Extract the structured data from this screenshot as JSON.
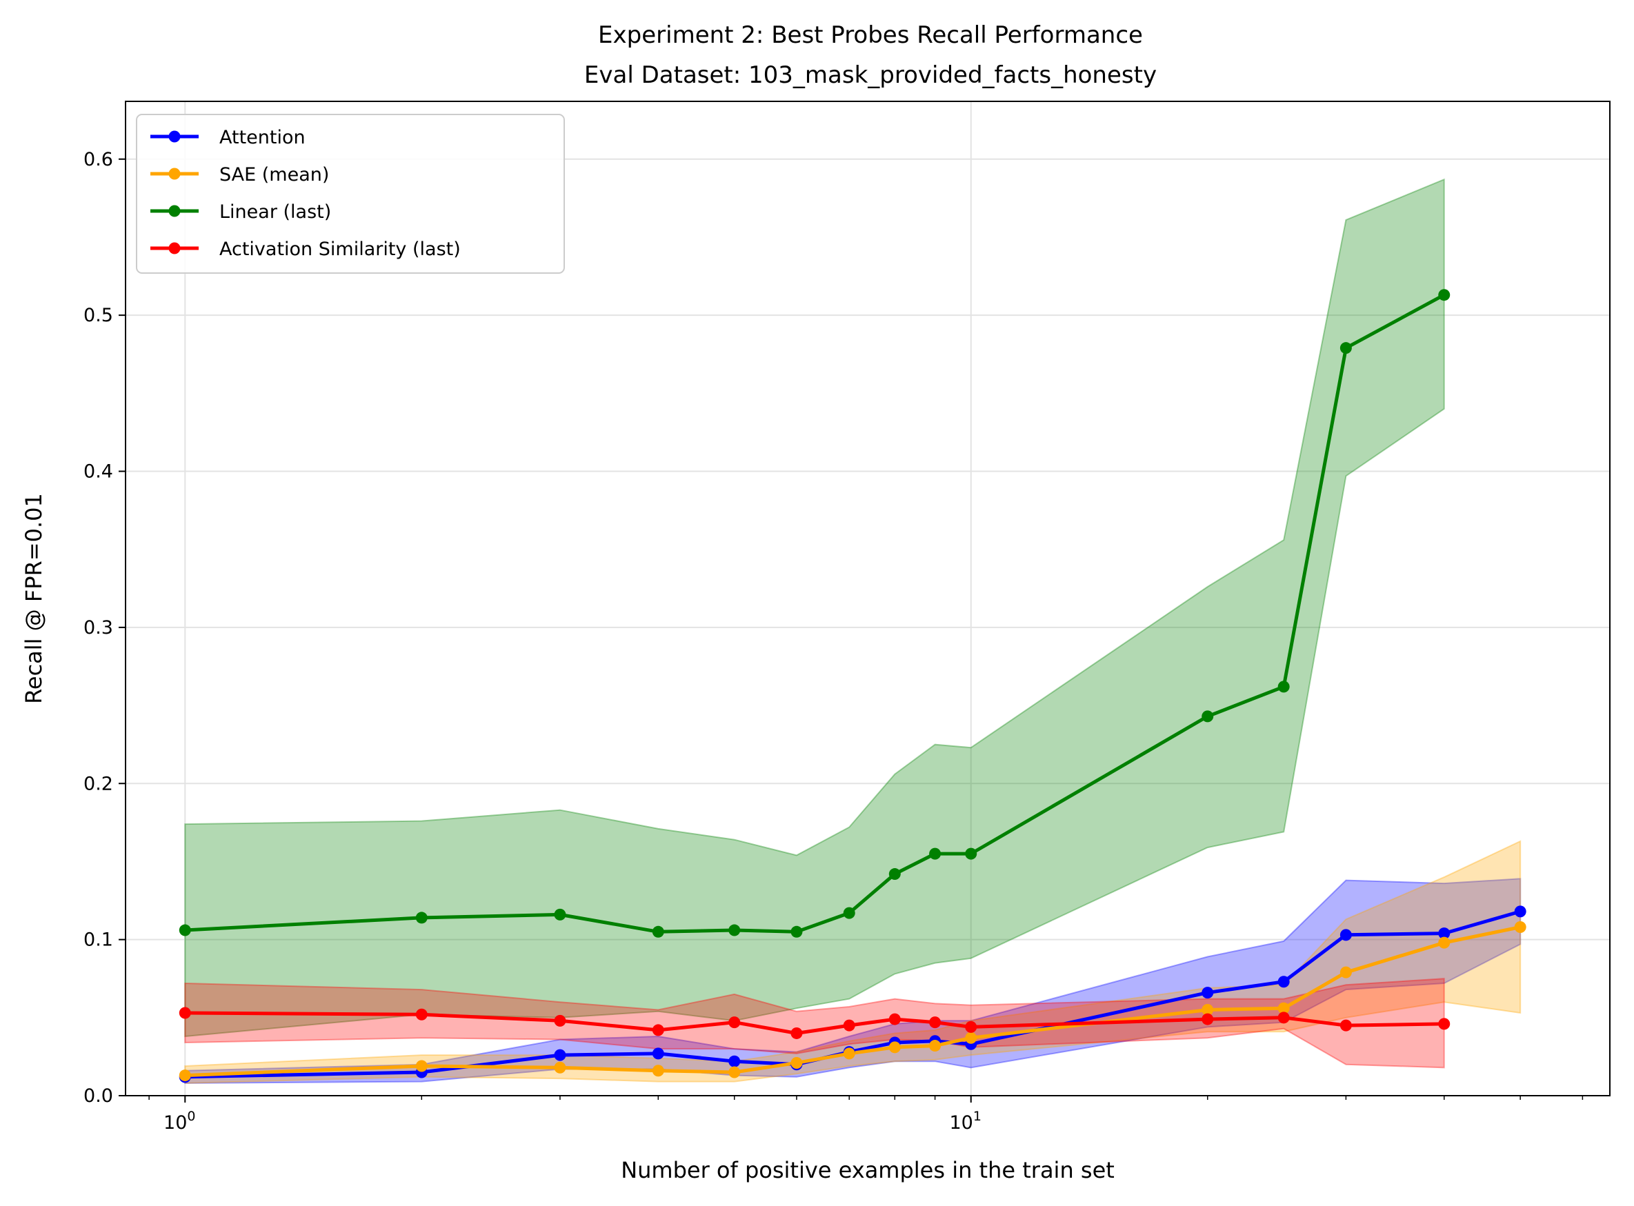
{
  "chart_data": {
    "type": "line",
    "title": "Experiment 2: Best Probes Recall Performance",
    "subtitle": "Eval Dataset: 103_mask_provided_facts_honesty",
    "xlabel": "Number of positive examples in the train set",
    "ylabel": "Recall @ FPR=0.01",
    "x_scale": "log",
    "xlim": [
      0.84,
      65
    ],
    "ylim": [
      0,
      0.637
    ],
    "grid": true,
    "legend_position": "top-left",
    "x_ticks": [
      {
        "value": 1,
        "base": "10",
        "exp": "0"
      },
      {
        "value": 10,
        "base": "10",
        "exp": "1"
      }
    ],
    "y_ticks": [
      {
        "value": 0.0,
        "label": "0.0"
      },
      {
        "value": 0.1,
        "label": "0.1"
      },
      {
        "value": 0.2,
        "label": "0.2"
      },
      {
        "value": 0.3,
        "label": "0.3"
      },
      {
        "value": 0.4,
        "label": "0.4"
      },
      {
        "value": 0.5,
        "label": "0.5"
      },
      {
        "value": 0.6,
        "label": "0.6"
      }
    ],
    "series": [
      {
        "name": "Attention",
        "color": "#0000ff",
        "x": [
          1,
          2,
          3,
          4,
          5,
          6,
          7,
          8,
          9,
          10,
          20,
          25,
          30,
          40,
          50
        ],
        "y": [
          0.012,
          0.015,
          0.026,
          0.027,
          0.022,
          0.02,
          0.028,
          0.034,
          0.035,
          0.033,
          0.066,
          0.073,
          0.103,
          0.104,
          0.118
        ],
        "upper": [
          0.016,
          0.02,
          0.036,
          0.038,
          0.03,
          0.028,
          0.038,
          0.046,
          0.048,
          0.048,
          0.089,
          0.099,
          0.138,
          0.136,
          0.139
        ],
        "lower": [
          0.008,
          0.009,
          0.017,
          0.017,
          0.013,
          0.012,
          0.018,
          0.022,
          0.022,
          0.018,
          0.044,
          0.047,
          0.068,
          0.072,
          0.097
        ]
      },
      {
        "name": "SAE (mean)",
        "color": "#ffa500",
        "x": [
          1,
          2,
          3,
          4,
          5,
          6,
          7,
          8,
          9,
          10,
          20,
          25,
          30,
          40,
          50
        ],
        "y": [
          0.013,
          0.019,
          0.018,
          0.016,
          0.015,
          0.021,
          0.027,
          0.031,
          0.032,
          0.037,
          0.055,
          0.056,
          0.079,
          0.098,
          0.108
        ],
        "upper": [
          0.019,
          0.026,
          0.026,
          0.024,
          0.022,
          0.028,
          0.035,
          0.04,
          0.042,
          0.048,
          0.069,
          0.071,
          0.113,
          0.14,
          0.163
        ],
        "lower": [
          0.008,
          0.012,
          0.011,
          0.009,
          0.009,
          0.014,
          0.019,
          0.022,
          0.023,
          0.026,
          0.041,
          0.041,
          0.05,
          0.06,
          0.053
        ]
      },
      {
        "name": "Linear (last)",
        "color": "#008000",
        "x": [
          1,
          2,
          3,
          4,
          5,
          6,
          7,
          8,
          9,
          10,
          20,
          25,
          30,
          40
        ],
        "y": [
          0.106,
          0.114,
          0.116,
          0.105,
          0.106,
          0.105,
          0.117,
          0.142,
          0.155,
          0.155,
          0.243,
          0.262,
          0.479,
          0.513
        ],
        "upper": [
          0.174,
          0.176,
          0.183,
          0.171,
          0.164,
          0.154,
          0.172,
          0.206,
          0.225,
          0.223,
          0.326,
          0.356,
          0.561,
          0.587
        ],
        "lower": [
          0.038,
          0.052,
          0.05,
          0.054,
          0.048,
          0.056,
          0.062,
          0.078,
          0.085,
          0.088,
          0.159,
          0.169,
          0.397,
          0.44
        ]
      },
      {
        "name": "Activation Similarity (last)",
        "color": "#ff0000",
        "x": [
          1,
          2,
          3,
          4,
          5,
          6,
          7,
          8,
          9,
          10,
          20,
          25,
          30,
          40
        ],
        "y": [
          0.053,
          0.052,
          0.048,
          0.042,
          0.047,
          0.04,
          0.045,
          0.049,
          0.047,
          0.044,
          0.049,
          0.05,
          0.045,
          0.046
        ],
        "upper": [
          0.072,
          0.068,
          0.06,
          0.055,
          0.065,
          0.054,
          0.057,
          0.062,
          0.059,
          0.058,
          0.062,
          0.062,
          0.071,
          0.075
        ],
        "lower": [
          0.034,
          0.037,
          0.036,
          0.03,
          0.03,
          0.027,
          0.033,
          0.036,
          0.035,
          0.031,
          0.037,
          0.043,
          0.02,
          0.018
        ]
      }
    ]
  }
}
